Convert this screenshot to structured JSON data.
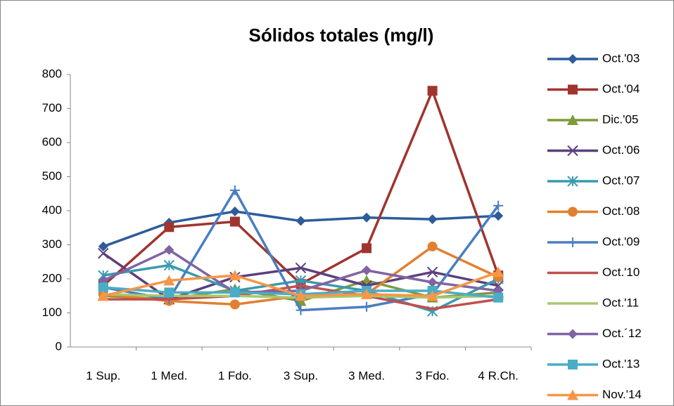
{
  "chart_data": {
    "type": "line",
    "title": "Sólidos totales (mg/l)",
    "categories": [
      "1 Sup.",
      "1 Med.",
      "1 Fdo.",
      "3 Sup.",
      "3 Med.",
      "3 Fdo.",
      "4 R.Ch."
    ],
    "ylim": [
      0,
      800
    ],
    "yticks": [
      0,
      100,
      200,
      300,
      400,
      500,
      600,
      700,
      800
    ],
    "series": [
      {
        "name": "Oct.'03",
        "color": "#2e5c9b",
        "marker": "diamond",
        "values": [
          295,
          365,
          398,
          370,
          380,
          375,
          385
        ]
      },
      {
        "name": "Oct.'04",
        "color": "#a0342f",
        "marker": "square",
        "values": [
          180,
          352,
          368,
          185,
          290,
          752,
          210
        ]
      },
      {
        "name": "Dic.'05",
        "color": "#7e9a3a",
        "marker": "triangle",
        "values": [
          150,
          140,
          170,
          135,
          195,
          145,
          160
        ]
      },
      {
        "name": "Oct.'06",
        "color": "#5b3f7d",
        "marker": "x",
        "values": [
          275,
          140,
          205,
          232,
          180,
          220,
          180
        ]
      },
      {
        "name": "Oct.'07",
        "color": "#3a9ab0",
        "marker": "asterisk",
        "values": [
          210,
          240,
          165,
          195,
          165,
          105,
          200
        ]
      },
      {
        "name": "Oct.'08",
        "color": "#e08030",
        "marker": "circle",
        "values": [
          155,
          135,
          125,
          150,
          155,
          295,
          205
        ]
      },
      {
        "name": "Oct.'09",
        "color": "#4a7ec0",
        "marker": "plus",
        "values": [
          175,
          140,
          460,
          108,
          118,
          155,
          415
        ]
      },
      {
        "name": "Oct.'10",
        "color": "#c0504d",
        "marker": "dash",
        "values": [
          140,
          140,
          150,
          180,
          150,
          112,
          140
        ]
      },
      {
        "name": "Oct.'11",
        "color": "#a8c870",
        "marker": "none",
        "values": [
          155,
          150,
          150,
          145,
          150,
          145,
          150
        ]
      },
      {
        "name": "Oct.´12",
        "color": "#8064a2",
        "marker": "diamond",
        "values": [
          195,
          285,
          160,
          165,
          225,
          190,
          165
        ]
      },
      {
        "name": "Oct.'13",
        "color": "#4bacc6",
        "marker": "square",
        "values": [
          175,
          160,
          160,
          155,
          165,
          165,
          145
        ]
      },
      {
        "name": "Nov.'14",
        "color": "#f79646",
        "marker": "triangle",
        "values": [
          150,
          195,
          210,
          150,
          155,
          150,
          220
        ]
      }
    ]
  }
}
